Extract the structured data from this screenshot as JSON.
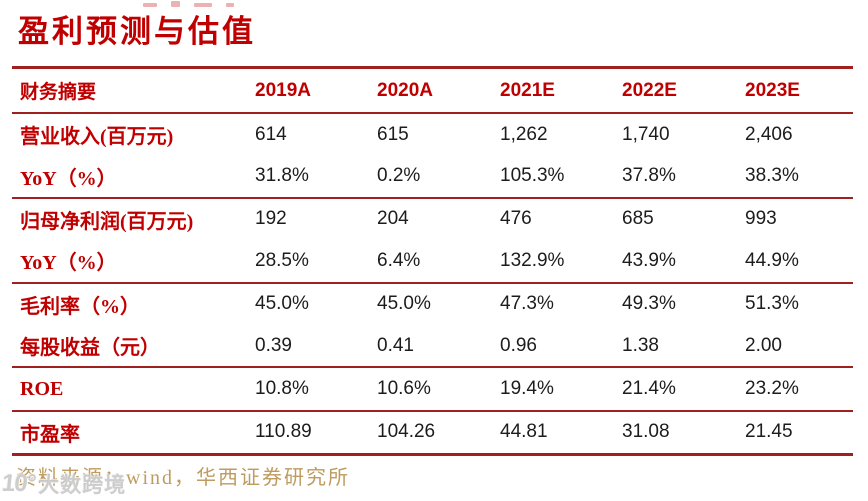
{
  "title": "盈利预测与估值",
  "table": {
    "header": [
      "财务摘要",
      "2019A",
      "2020A",
      "2021E",
      "2022E",
      "2023E"
    ],
    "groups": [
      {
        "rows": [
          {
            "label": "营业收入(百万元)",
            "values": [
              "614",
              "615",
              "1,262",
              "1,740",
              "2,406"
            ]
          },
          {
            "label": "YoY（%）",
            "values": [
              "31.8%",
              "0.2%",
              "105.3%",
              "37.8%",
              "38.3%"
            ]
          }
        ]
      },
      {
        "rows": [
          {
            "label": "归母净利润(百万元)",
            "values": [
              "192",
              "204",
              "476",
              "685",
              "993"
            ]
          },
          {
            "label": "YoY（%）",
            "values": [
              "28.5%",
              "6.4%",
              "132.9%",
              "43.9%",
              "44.9%"
            ]
          }
        ]
      },
      {
        "rows": [
          {
            "label": "毛利率（%）",
            "values": [
              "45.0%",
              "45.0%",
              "47.3%",
              "49.3%",
              "51.3%"
            ]
          },
          {
            "label": "每股收益（元）",
            "values": [
              "0.39",
              "0.41",
              "0.96",
              "1.38",
              "2.00"
            ]
          }
        ]
      },
      {
        "rows": [
          {
            "label": "ROE",
            "values": [
              "10.8%",
              "10.6%",
              "19.4%",
              "21.4%",
              "23.2%"
            ]
          }
        ]
      },
      {
        "rows": [
          {
            "label": "市盈率",
            "values": [
              "110.89",
              "104.26",
              "44.81",
              "31.08",
              "21.45"
            ]
          }
        ]
      }
    ]
  },
  "footer": {
    "source": "资料来源：wind，华西证券研究所"
  },
  "watermark": {
    "logo": "10°",
    "text": "大数跨境"
  },
  "colors": {
    "accent_red": "#C00000",
    "line_red": "#A02020",
    "body_text": "#1C1C1C",
    "source_gold": "#BE9B5E"
  }
}
